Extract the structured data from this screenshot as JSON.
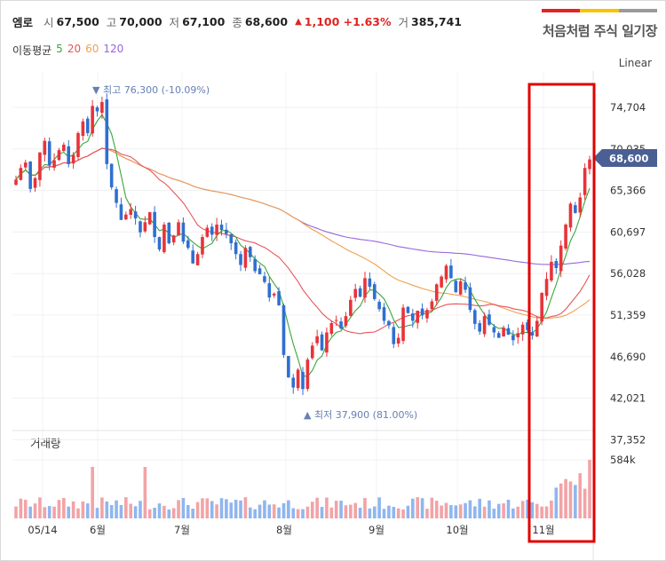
{
  "header": {
    "name": "엠로",
    "open_label": "시",
    "open": "67,500",
    "high_label": "고",
    "high": "70,000",
    "low_label": "저",
    "low": "67,100",
    "close_label": "종",
    "close": "68,600",
    "change_arrow": "▲",
    "change": "1,100 +1.63%",
    "volume_label": "거",
    "volume": "385,741"
  },
  "ma_legend": {
    "title": "이동평균",
    "items": [
      {
        "label": "5",
        "color": "#3aa63a"
      },
      {
        "label": "20",
        "color": "#e8545a"
      },
      {
        "label": "60",
        "color": "#f0a050"
      },
      {
        "label": "120",
        "color": "#9966dd"
      }
    ]
  },
  "brand": {
    "title": "처음처럼 주식 일기장",
    "colors": [
      "#e02424",
      "#f5c400",
      "#9a9a9a"
    ]
  },
  "scale_label": "Linear",
  "volume_title": "거래량",
  "colors": {
    "up": "#e8333a",
    "down": "#2f6fd1",
    "vol_up": "#f2a3a6",
    "vol_down": "#8fb6ee",
    "highlight": "#e00000"
  },
  "chart_data": {
    "type": "candlestick",
    "price_ticks": [
      "74,704",
      "70,035",
      "65,366",
      "60,697",
      "56,028",
      "51,359",
      "46,690",
      "42,021",
      "37,352"
    ],
    "volume_tick": "584k",
    "x_labels": [
      "05/14",
      "6월",
      "7월",
      "8월",
      "9월",
      "10월",
      "11월"
    ],
    "current_price": "68,600",
    "annotations": {
      "high": "최고 76,300 (-10.09%)",
      "low": "최저 37,900 (81.00%)"
    },
    "ylim": [
      34000,
      80000
    ],
    "close_series": [
      66000,
      67500,
      68200,
      64800,
      66200,
      69500,
      71000,
      67800,
      68500,
      69800,
      70500,
      68000,
      69200,
      72000,
      73500,
      72000,
      75500,
      74800,
      76000,
      68000,
      65000,
      63000,
      60800,
      61500,
      62200,
      61000,
      59200,
      60500,
      61800,
      58600,
      57000,
      60200,
      57800,
      58800,
      60500,
      58000,
      57200,
      55200,
      56400,
      58600,
      59800,
      58900,
      60200,
      59500,
      59000,
      57800,
      56400,
      55000,
      57200,
      56000,
      54200,
      53800,
      52800,
      50800,
      51300,
      49800,
      43400,
      40500,
      39200,
      41500,
      39000,
      42800,
      44600,
      45800,
      44000,
      46300,
      47500,
      47900,
      46800,
      48400,
      50500,
      51900,
      50900,
      53300,
      52200,
      50600,
      49300,
      47800,
      47200,
      44800,
      45600,
      49500,
      48800,
      47800,
      49100,
      48500,
      49200,
      50300,
      52500,
      53500,
      54900,
      53300,
      51500,
      52900,
      51800,
      49200,
      47400,
      46400,
      48400,
      47300,
      46300,
      45600,
      46900,
      46000,
      45300,
      46200,
      47300,
      46600,
      45900,
      47800,
      51400,
      53200,
      55400,
      54600,
      57500,
      60200,
      62900,
      61700,
      63700,
      67500,
      68600
    ]
  }
}
